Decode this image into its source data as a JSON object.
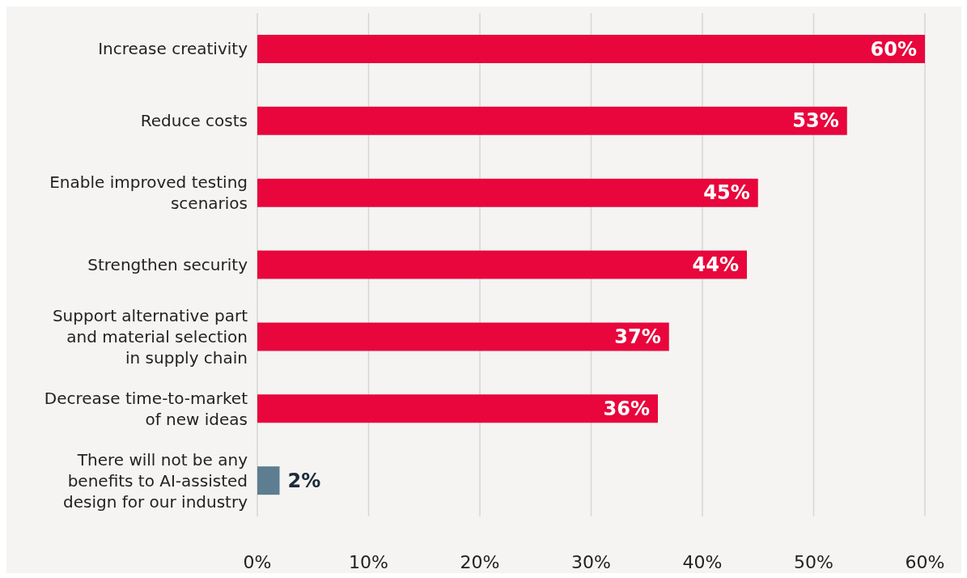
{
  "chart_data": {
    "type": "bar",
    "orientation": "horizontal",
    "categories": [
      "Increase creativity",
      "Reduce costs",
      "Enable improved testing scenarios",
      "Strengthen security",
      "Support alternative part and material selection in supply chain",
      "Decrease time-to-market of new ideas",
      "There will not be any benefits to AI-assisted design for our industry"
    ],
    "values": [
      60,
      53,
      45,
      44,
      37,
      36,
      2
    ],
    "value_labels": [
      "60%",
      "53%",
      "45%",
      "44%",
      "37%",
      "36%",
      "2%"
    ],
    "colors": [
      "#e8063c",
      "#e8063c",
      "#e8063c",
      "#e8063c",
      "#e8063c",
      "#e8063c",
      "#5d7d91"
    ],
    "xlim": [
      0,
      60
    ],
    "xticks": [
      {
        "value": 0,
        "label": "0%"
      },
      {
        "value": 10,
        "label": "10%"
      },
      {
        "value": 20,
        "label": "20%"
      },
      {
        "value": 30,
        "label": "30%"
      },
      {
        "value": 40,
        "label": "40%"
      },
      {
        "value": 50,
        "label": "50%"
      },
      {
        "value": 60,
        "label": "60%"
      }
    ],
    "grid": "x"
  }
}
